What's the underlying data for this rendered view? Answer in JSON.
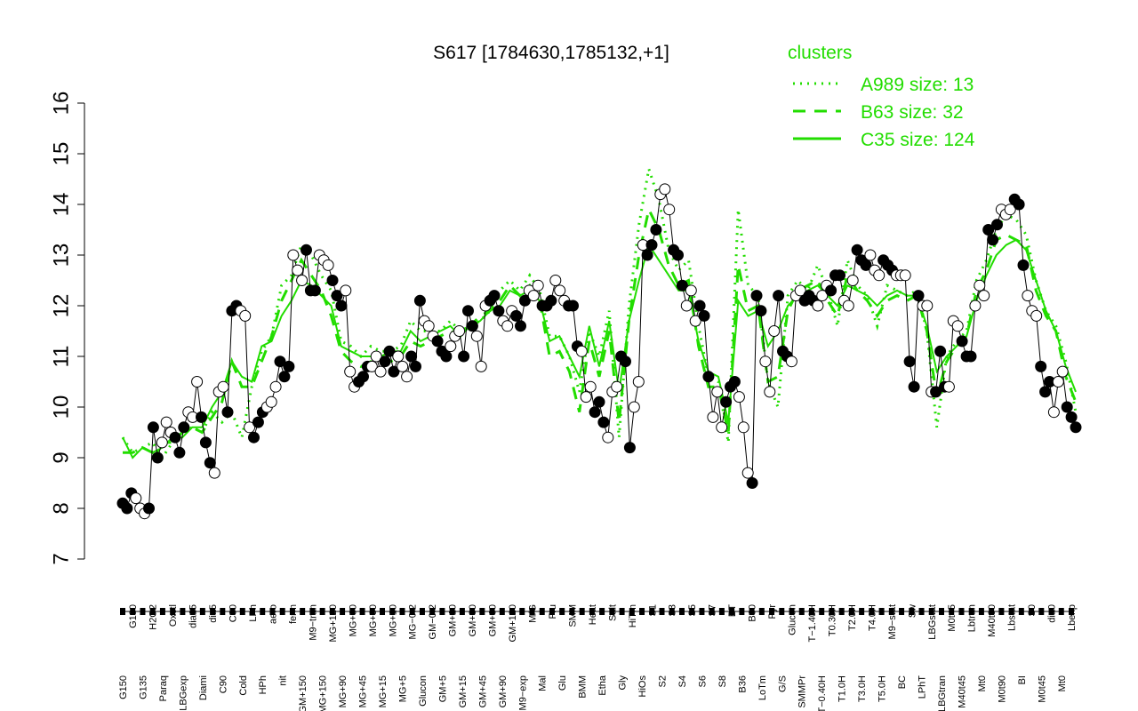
{
  "chart_data": {
    "type": "line",
    "title": "S617 [1784630,1785132,+1]",
    "xlabel": "",
    "ylabel": "",
    "ylim": [
      7,
      16
    ],
    "yticks": [
      7,
      8,
      9,
      10,
      11,
      12,
      13,
      14,
      15,
      16
    ],
    "colors": {
      "cluster": "#22dd00",
      "axis": "#000000",
      "point_dark": "#000000",
      "point_light": "#ffffff"
    },
    "x_tick_labels": [
      "G150",
      "G180",
      "G135",
      "H2O2",
      "Paraq",
      "Oxctl",
      "LBGexp",
      "dia15",
      "Diami",
      "dia5",
      "C90",
      "C30",
      "Cold",
      "LPh",
      "HPh",
      "aero",
      "nit",
      "ferm",
      "GM+150",
      "M9−tran",
      "MG+150",
      "MG+120",
      "MG+90",
      "MG+60",
      "MG+45",
      "MG+30",
      "MG+15",
      "MG+10",
      "MG+5",
      "MG−0.2",
      "Glucon",
      "GM−0.2",
      "GM+5",
      "GM+10",
      "GM+15",
      "GM+30",
      "GM+45",
      "GM+60",
      "GM+90",
      "GM+120",
      "M9−exp",
      "M/G",
      "Mal",
      "Fru",
      "Glu",
      "SMM",
      "BMM",
      "Heat",
      "Etha",
      "Salt",
      "Gly",
      "HiTm",
      "HiOs",
      "S1",
      "S2",
      "S3",
      "S4",
      "S5",
      "S6",
      "S7",
      "S8",
      "BT",
      "B36",
      "B60",
      "LoTm",
      "Pyr",
      "G/S",
      "Glucon",
      "SMMPr",
      "T−1.40H",
      "T−0.40H",
      "T0.30H",
      "T1.0H",
      "T2.0H",
      "T3.0H",
      "T4.0H",
      "T5.0H",
      "M9−stat",
      "BC",
      "Sw",
      "LPhT",
      "LBGstat",
      "LBGtran",
      "M0t45",
      "M40t45",
      "Lbtran",
      "Mt0",
      "M40t90",
      "M0t90",
      "Lbstat",
      "BI",
      "S0",
      "M0t45",
      "dia0",
      "Mt0",
      "Lbexp"
    ],
    "tick_label_rows": 2,
    "legend": {
      "title": "clusters",
      "position": "top-right",
      "entries": [
        {
          "label": "A989 size: 13",
          "style": "dotted"
        },
        {
          "label": "B63 size: 32",
          "style": "dashed"
        },
        {
          "label": "C35 size: 124",
          "style": "solid"
        }
      ]
    },
    "series": [
      {
        "marker": "circle",
        "values": [
          8.1,
          8.0,
          8.3,
          8.2,
          8.0,
          7.9,
          8.0,
          9.6,
          9.0,
          9.3,
          9.7,
          9.5,
          9.4,
          9.1,
          9.6,
          9.9,
          9.8,
          10.5,
          9.8,
          9.3,
          8.9,
          8.7,
          10.3,
          10.4,
          9.9,
          11.9,
          12.0,
          11.9,
          11.8,
          9.6,
          9.4,
          9.7,
          9.9,
          10.0,
          10.1,
          10.4,
          10.9,
          10.6,
          10.8,
          13.0,
          12.7,
          12.5,
          13.1,
          12.3,
          12.3,
          13.0,
          12.9,
          12.8,
          12.5,
          12.2,
          12.0,
          12.3,
          10.7,
          10.4,
          10.5,
          10.6,
          10.8,
          10.8,
          11.0,
          10.7,
          10.9,
          11.1,
          10.7,
          11.0,
          10.8,
          10.6,
          11.0,
          10.8,
          12.1,
          11.7,
          11.6,
          11.4,
          11.3,
          11.1,
          11.0,
          11.2,
          11.4,
          11.5,
          11.0,
          11.9,
          11.6,
          11.4,
          10.8,
          12.0,
          12.1,
          12.2,
          11.9,
          11.7,
          11.6,
          11.9,
          11.8,
          11.6,
          12.1,
          12.3,
          12.2,
          12.4,
          12.0,
          12.0,
          12.1,
          12.5,
          12.3,
          12.1,
          12.0,
          12.0,
          11.2,
          11.1,
          10.2,
          10.4,
          9.9,
          10.1,
          9.7,
          9.4,
          10.3,
          10.4,
          11.0,
          10.9,
          9.2,
          10.0,
          10.5,
          13.2,
          13.0,
          13.2,
          13.5,
          14.2,
          14.3,
          13.9,
          13.1,
          13.0,
          12.4,
          12.0,
          12.3,
          11.7,
          12.0,
          11.8,
          10.6,
          9.8,
          10.3,
          9.6,
          10.1,
          10.4,
          10.5,
          10.2,
          9.6,
          8.7,
          8.5,
          12.2,
          11.9,
          10.9,
          10.3,
          11.5,
          12.2,
          11.1,
          11.0,
          10.9,
          12.2,
          12.3,
          12.1,
          12.2,
          12.1,
          12.0,
          12.2,
          12.4,
          12.3,
          12.6,
          12.6,
          12.1,
          12.0,
          12.5,
          13.1,
          12.9,
          12.8,
          13.0,
          12.7,
          12.6,
          12.9,
          12.8,
          12.7,
          12.6,
          12.6,
          12.6,
          10.9,
          10.4,
          12.2,
          12.0,
          12.0,
          10.3,
          10.3,
          11.1,
          10.4,
          10.4,
          11.7,
          11.6,
          11.3,
          11.0,
          11.0,
          12.0,
          12.4,
          12.2,
          13.5,
          13.3,
          13.6,
          13.9,
          13.8,
          13.9,
          14.1,
          14.0,
          12.8,
          12.2,
          11.9,
          11.8,
          10.8,
          10.3,
          10.5,
          9.9,
          10.5,
          10.7,
          10.0,
          9.8,
          9.6
        ]
      },
      {
        "name": "A989 size: 13",
        "style": "dotted",
        "values": [
          9.4,
          9.1,
          9.2,
          9.3,
          9.0,
          9.3,
          9.5,
          9.6,
          9.5,
          9.9,
          9.7,
          9.9,
          9.4,
          10.4,
          11.1,
          11.4,
          12.4,
          12.6,
          13.2,
          13.0,
          12.6,
          12.3,
          11.3,
          11.2,
          11.0,
          11.2,
          11.1,
          11.1,
          11.2,
          11.7,
          11.5,
          11.5,
          11.5,
          11.7,
          11.5,
          11.6,
          11.7,
          11.9,
          12.3,
          12.5,
          12.3,
          12.6,
          12.3,
          11.4,
          11.4,
          11.0,
          10.3,
          11.5,
          11.0,
          11.9,
          9.4,
          12.0,
          13.6,
          14.7,
          14.1,
          13.1,
          12.7,
          12.9,
          11.6,
          10.6,
          10.5,
          9.3,
          13.9,
          12.4,
          12.2,
          10.5,
          10.0,
          12.2,
          12.5,
          12.3,
          12.8,
          12.3,
          11.6,
          12.9,
          12.4,
          12.2,
          11.6,
          12.4,
          12.3,
          12.2,
          12.3,
          11.5,
          9.6,
          11.0,
          11.3,
          11.5,
          12.5,
          12.9,
          13.5,
          13.8,
          13.7,
          13.4,
          12.5,
          11.9,
          11.6,
          10.9,
          9.9
        ]
      },
      {
        "name": "B63 size: 32",
        "style": "dashed",
        "values": [
          9.1,
          9.1,
          9.2,
          9.1,
          9.3,
          9.3,
          9.5,
          9.6,
          9.5,
          9.8,
          10.1,
          10.9,
          10.4,
          10.4,
          10.9,
          11.4,
          12.1,
          12.5,
          12.9,
          12.6,
          12.3,
          11.8,
          11.1,
          10.9,
          10.8,
          10.9,
          10.9,
          10.9,
          11.0,
          11.3,
          11.2,
          11.3,
          11.4,
          11.5,
          11.4,
          11.6,
          11.8,
          11.9,
          12.1,
          12.4,
          12.2,
          12.4,
          12.1,
          11.0,
          11.1,
          10.7,
          9.9,
          11.3,
          10.6,
          11.5,
          9.7,
          11.7,
          13.0,
          13.9,
          13.5,
          12.8,
          12.4,
          12.5,
          11.2,
          10.4,
          10.4,
          9.5,
          12.8,
          11.9,
          12.0,
          10.5,
          10.6,
          11.9,
          12.3,
          12.4,
          12.5,
          12.1,
          11.8,
          12.6,
          12.3,
          12.1,
          11.8,
          12.1,
          12.2,
          12.1,
          12.2,
          11.5,
          10.2,
          10.9,
          11.2,
          11.4,
          12.3,
          12.7,
          13.3,
          13.4,
          13.3,
          13.2,
          12.3,
          11.8,
          11.5,
          10.6,
          10.1
        ]
      },
      {
        "name": "C35 size: 124",
        "style": "solid",
        "values": [
          9.4,
          9.0,
          9.2,
          9.1,
          9.2,
          9.4,
          9.4,
          9.6,
          9.6,
          10.0,
          10.3,
          10.9,
          10.6,
          10.5,
          11.2,
          11.3,
          11.8,
          12.1,
          12.5,
          12.4,
          12.2,
          12.0,
          11.2,
          11.1,
          11.0,
          11.0,
          11.0,
          11.1,
          11.1,
          11.5,
          11.3,
          11.4,
          11.5,
          11.6,
          11.4,
          11.6,
          11.7,
          11.9,
          12.0,
          12.3,
          12.2,
          12.3,
          12.1,
          11.3,
          11.4,
          11.0,
          10.6,
          11.6,
          10.8,
          11.7,
          10.3,
          11.7,
          12.5,
          13.2,
          12.9,
          12.6,
          12.3,
          12.3,
          11.3,
          10.7,
          10.6,
          9.7,
          12.1,
          11.8,
          11.9,
          11.2,
          11.5,
          12.0,
          12.2,
          12.3,
          12.4,
          12.2,
          12.0,
          12.4,
          12.3,
          12.2,
          12.0,
          12.2,
          12.3,
          12.2,
          12.2,
          11.6,
          10.7,
          11.0,
          11.2,
          11.4,
          12.1,
          12.6,
          13.0,
          13.2,
          13.3,
          13.1,
          12.5,
          11.9,
          11.5,
          10.8,
          10.3
        ]
      }
    ],
    "grid": false
  }
}
